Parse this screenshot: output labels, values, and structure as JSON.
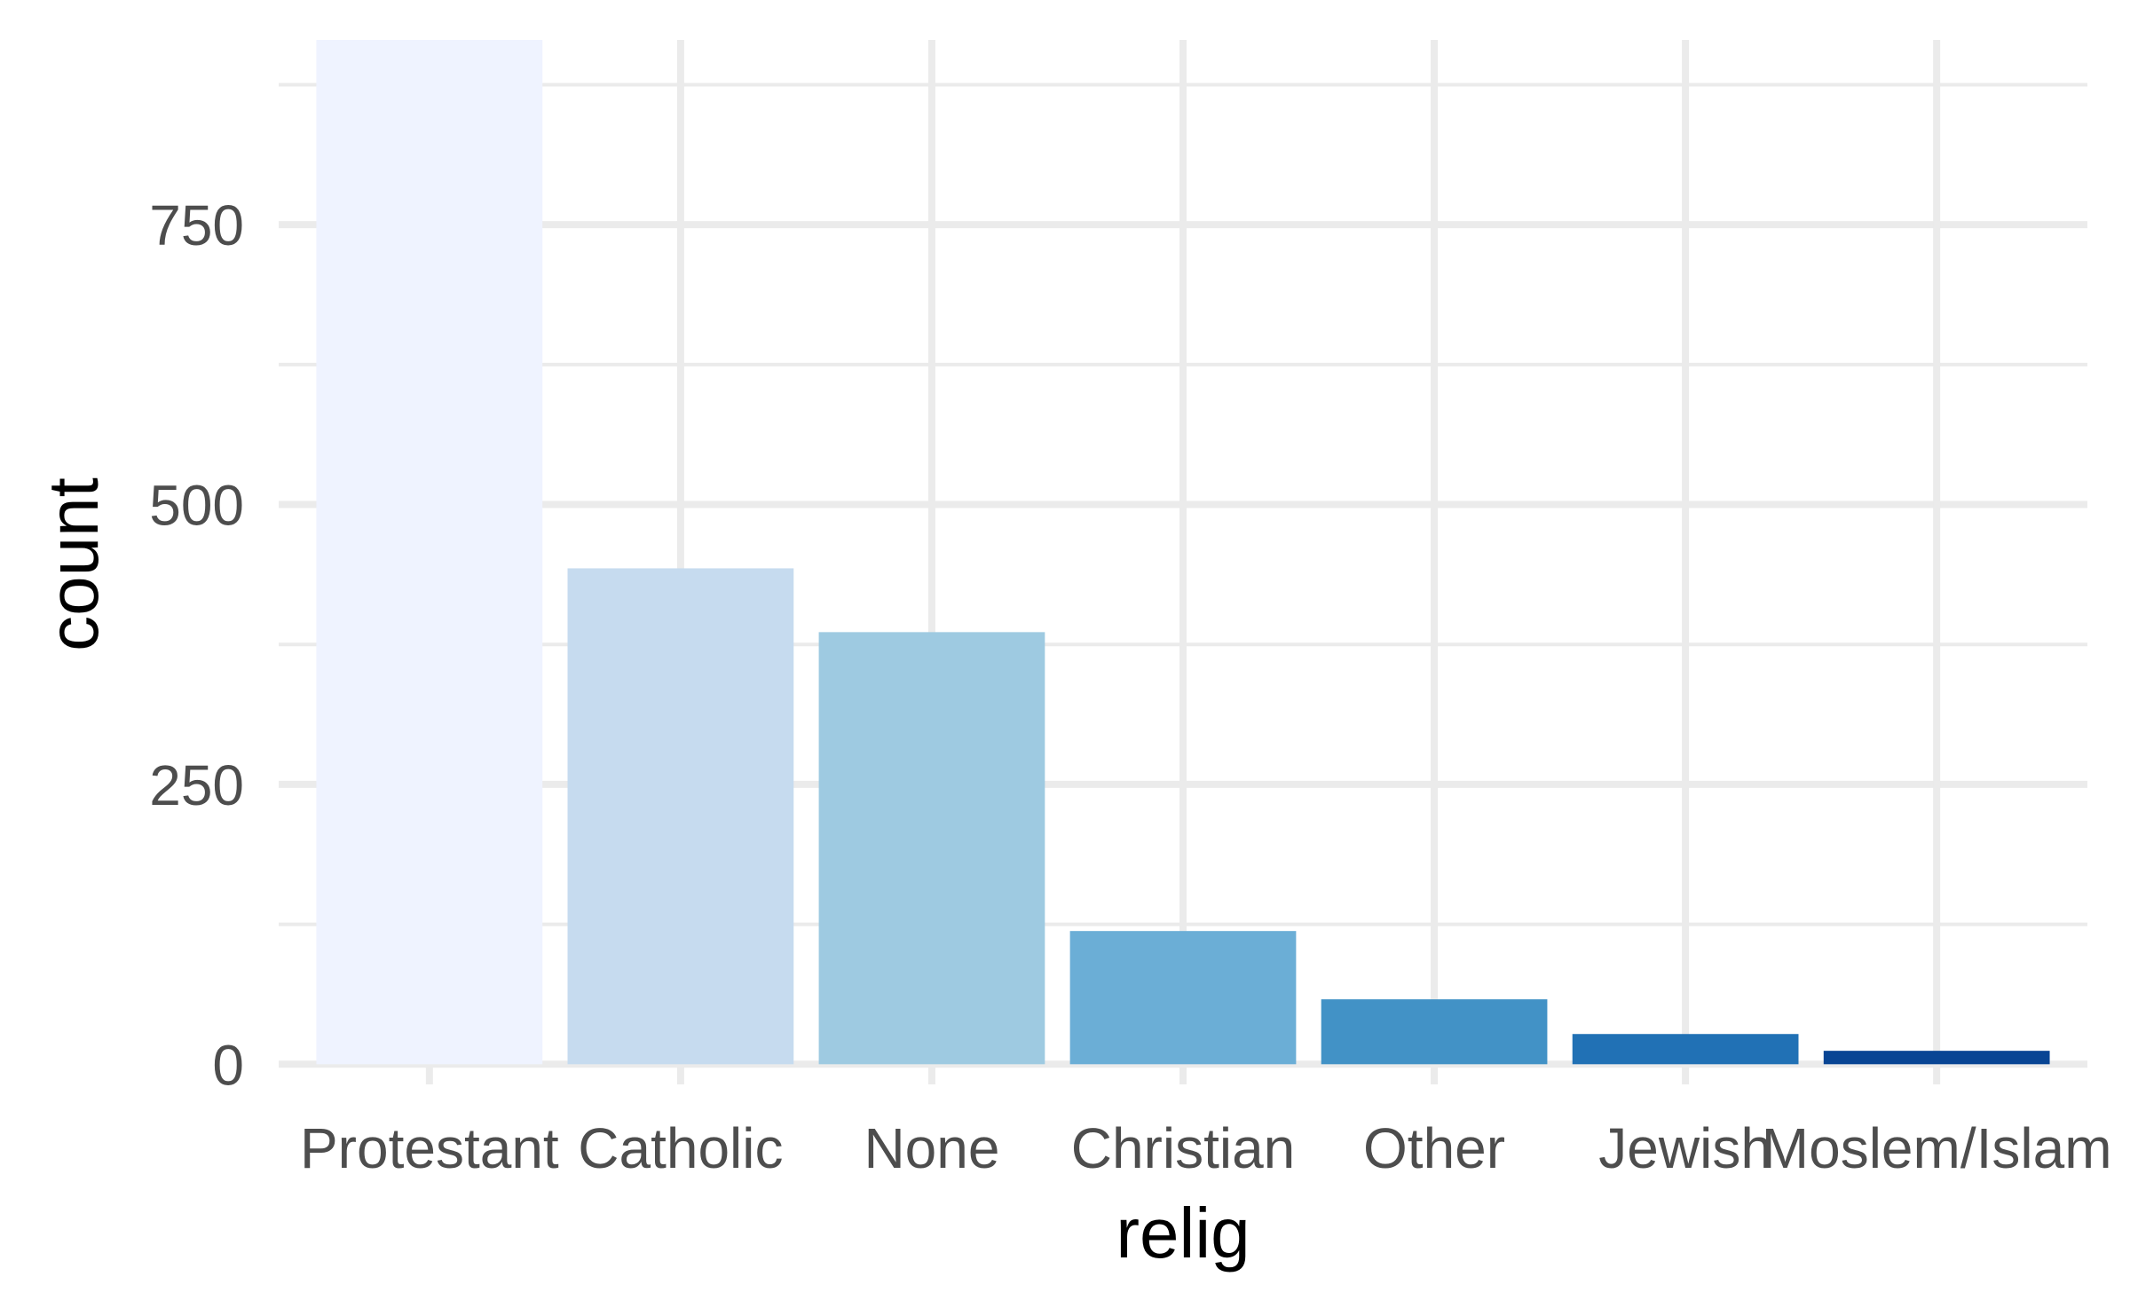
{
  "chart_data": {
    "type": "bar",
    "title": "",
    "xlabel": "relig",
    "ylabel": "count",
    "categories": [
      "Protestant",
      "Catholic",
      "None",
      "Christian",
      "Other",
      "Jewish",
      "Moslem/Islam"
    ],
    "values": [
      915,
      443,
      386,
      119,
      58,
      27,
      12
    ],
    "bar_colors": [
      "#eff3ff",
      "#c6dbef",
      "#9ecae1",
      "#6baed6",
      "#4292c6",
      "#2171b5",
      "#084594"
    ],
    "ylim": [
      -18,
      915
    ],
    "yticks": [
      0,
      250,
      500,
      750
    ],
    "ytick_labels": [
      "0",
      "250",
      "500",
      "750"
    ],
    "y_minor_ticks": [
      125,
      375,
      625,
      875
    ],
    "grid": true,
    "grid_color": "#ebebeb",
    "tick_label_color": "#4d4d4d",
    "legend": "none"
  }
}
